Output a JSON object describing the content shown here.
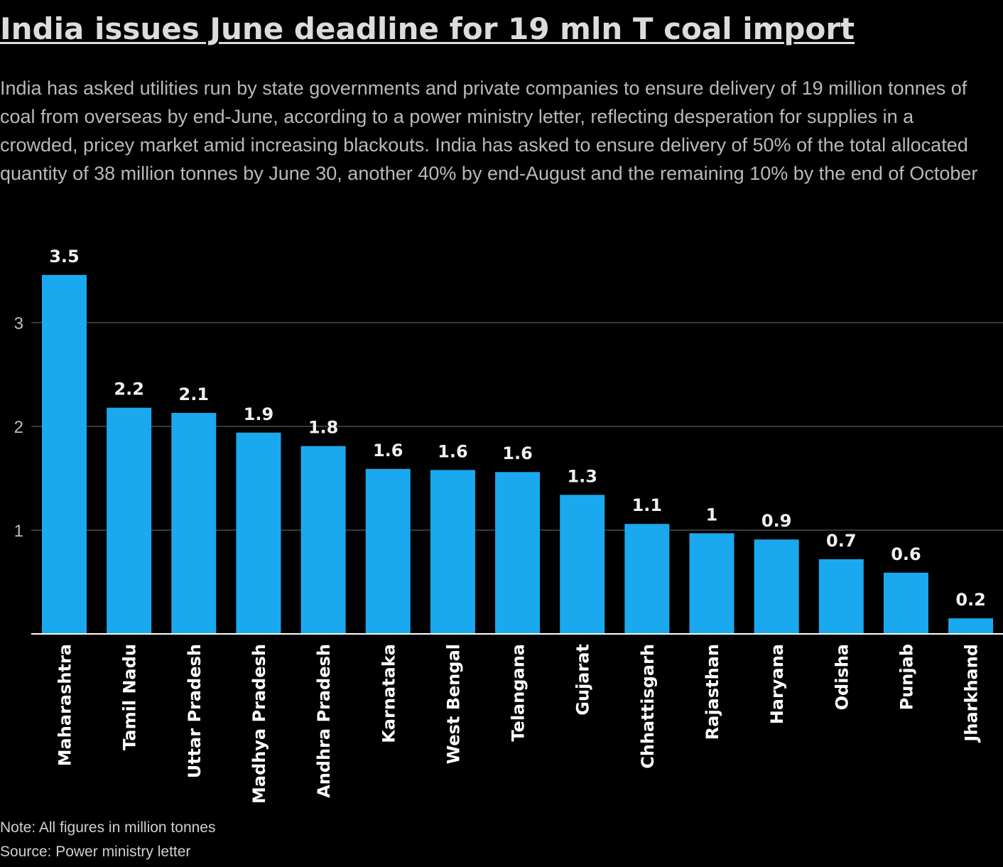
{
  "title": "India issues June deadline for 19 mln T coal import",
  "subtitle": "India has asked utilities run by state governments and private companies to ensure delivery of 19 million tonnes of coal from overseas by end-June, according to a power ministry letter, reflecting desperation for supplies in a crowded, pricey market amid increasing blackouts. India has asked to ensure delivery of 50% of the total allocated quantity of 38 million tonnes by June 30, another 40% by end-August and the remaining 10% by the end of October",
  "note": "Note: All figures in million tonnes",
  "source": "Source: Power ministry letter",
  "colors": {
    "background": "#000000",
    "bar": "#1aa9ee",
    "gridline": "#4a4a4a",
    "axis": "#ffffff",
    "tick_label": "#bdbdbd",
    "data_label": "#f0f0f0"
  },
  "chart_data": {
    "type": "bar",
    "categories": [
      "Maharashtra",
      "Tamil Nadu",
      "Uttar Pradesh",
      "Madhya Pradesh",
      "Andhra Pradesh",
      "Karnataka",
      "West Bengal",
      "Telangana",
      "Gujarat",
      "Chhattisgarh",
      "Rajasthan",
      "Haryana",
      "Odisha",
      "Punjab",
      "Jharkhand"
    ],
    "values": [
      3.46,
      2.18,
      2.13,
      1.94,
      1.81,
      1.59,
      1.58,
      1.56,
      1.34,
      1.06,
      0.97,
      0.91,
      0.72,
      0.59,
      0.15
    ],
    "data_labels": [
      "3.5",
      "2.2",
      "2.1",
      "1.9",
      "1.8",
      "1.6",
      "1.6",
      "1.6",
      "1.3",
      "1.1",
      "1",
      "0.9",
      "0.7",
      "0.6",
      "0.2"
    ],
    "yticks": [
      1,
      2,
      3
    ],
    "ylim": [
      0,
      3.5
    ],
    "grid": true,
    "xlabel": "",
    "ylabel": "",
    "category_label_orientation": "vertical"
  }
}
